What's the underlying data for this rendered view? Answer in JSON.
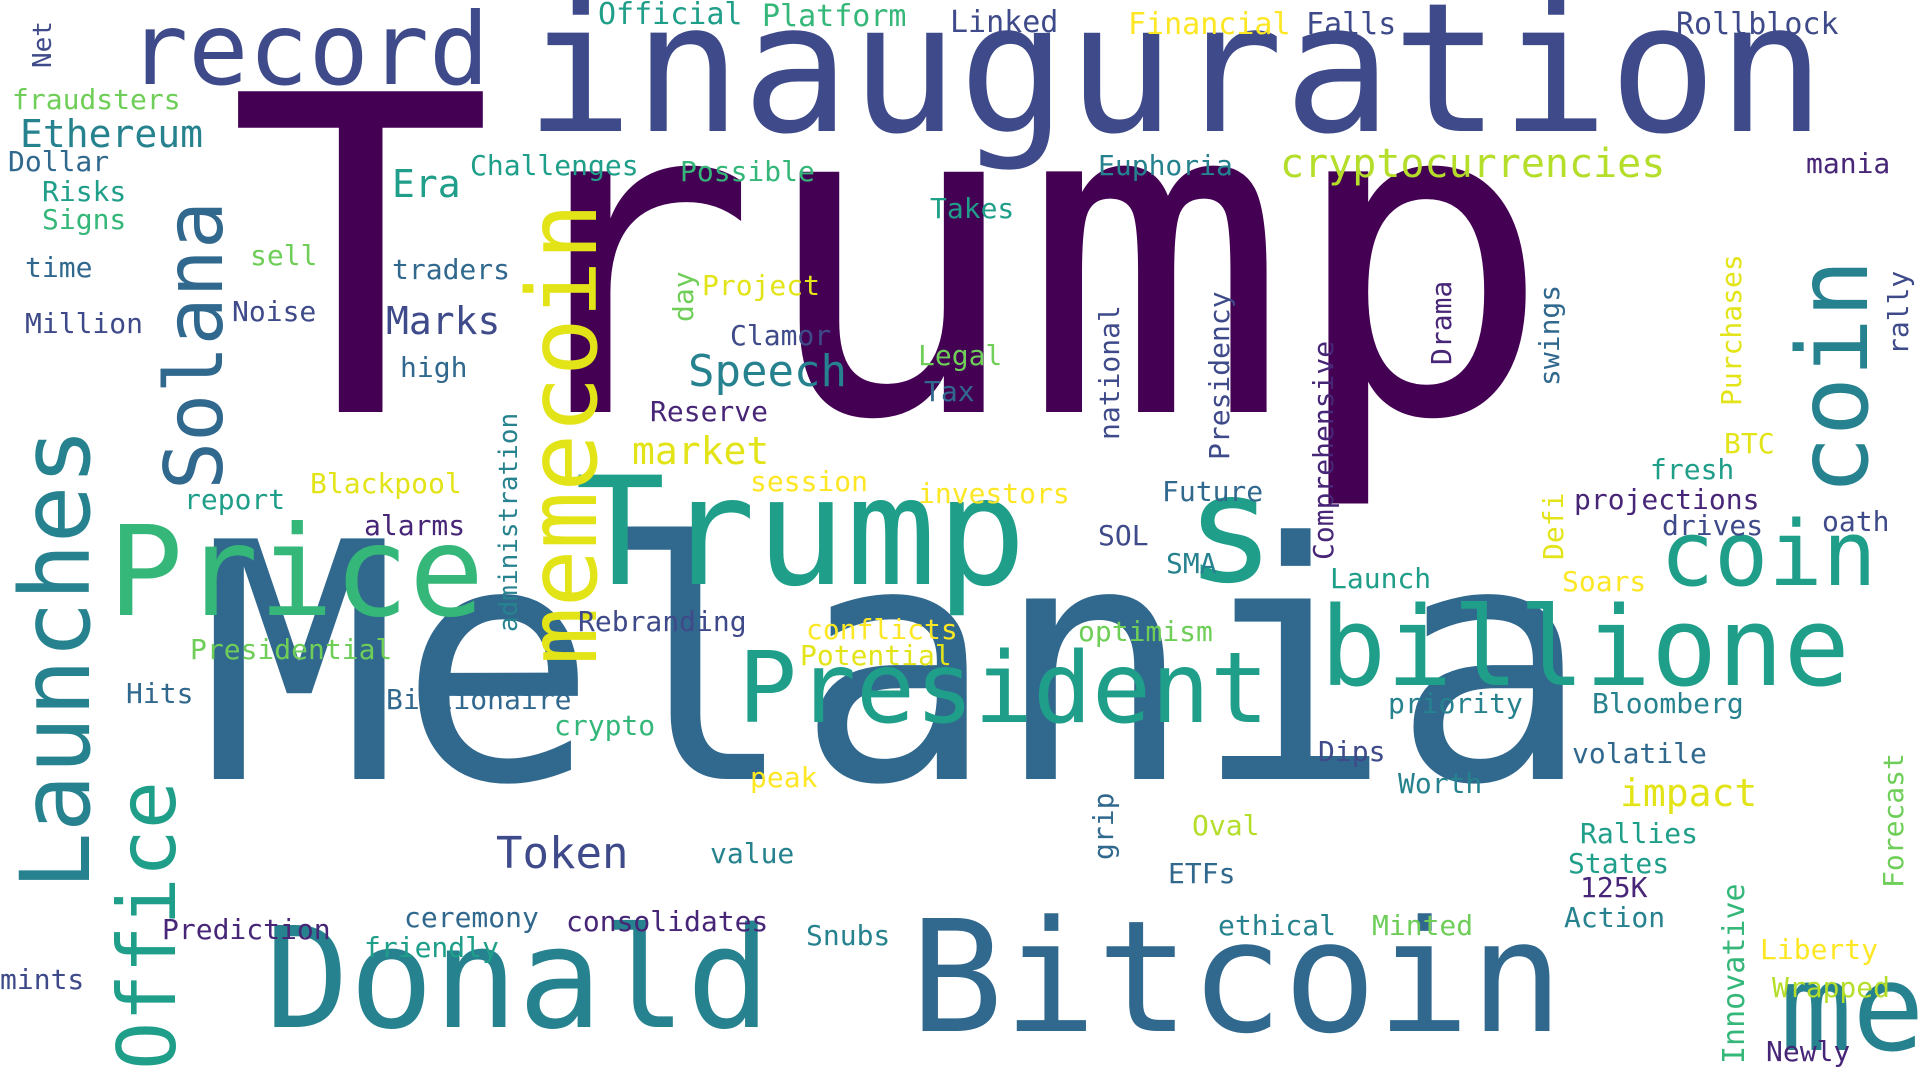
{
  "words": [
    "Trump",
    "Melania",
    "inauguration",
    "Bitcoin",
    "Donald",
    "Trump",
    "s",
    "Price",
    "coin",
    "meme",
    "billione",
    "President",
    "memecoin",
    "Launches",
    "coin",
    "Solana",
    "record",
    "Office",
    "Token",
    "Speech",
    "cryptocurrencies",
    "Ethereum",
    "Official",
    "Platform",
    "Linked",
    "Financial",
    "Falls",
    "Rollblock",
    "Net",
    "fraudsters",
    "Dollar",
    "Risks",
    "Signs",
    "time",
    "Million",
    "sell",
    "Noise",
    "traders",
    "Era",
    "Challenges",
    "Possible",
    "Euphoria",
    "mania",
    "Takes",
    "Marks",
    "day",
    "Project",
    "Clamor",
    "high",
    "Legal",
    "Tax",
    "Reserve",
    "market",
    "national",
    "Presidency",
    "Drama",
    "swings",
    "Purchases",
    "rally",
    "Comprehensive",
    "administration",
    "BTC",
    "fresh",
    "report",
    "Blackpool",
    "alarms",
    "session",
    "investors",
    "Future",
    "projections",
    "drives",
    "oath",
    "SOL",
    "SMA",
    "Defi",
    "Launch",
    "Soars",
    "Rebranding",
    "conflicts",
    "optimism",
    "Presidential",
    "Potential",
    "Hits",
    "Billionaire",
    "crypto",
    "priority",
    "Bloomberg",
    "Dips",
    "volatile",
    "peak",
    "Worth",
    "impact",
    "Forecast",
    "grip",
    "Oval",
    "value",
    "Rallies",
    "Innovative",
    "States",
    "125K",
    "ETFs",
    "Prediction",
    "ceremony",
    "consolidates",
    "friendly",
    "Snubs",
    "ethical",
    "Minted",
    "Action",
    "Liberty",
    "mints",
    "Wrapped",
    "Newly"
  ],
  "colors": {
    "background": "#ffffff"
  }
}
